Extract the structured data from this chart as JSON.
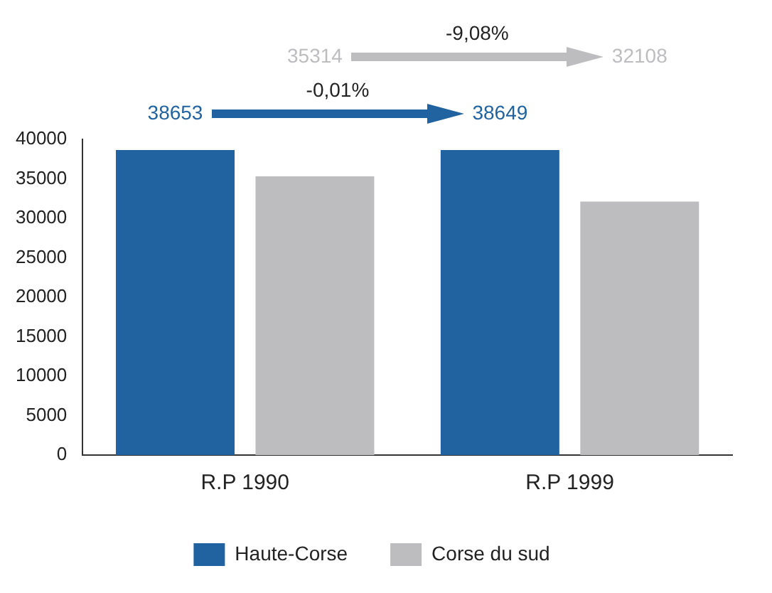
{
  "chart_data": {
    "type": "bar",
    "categories": [
      "R.P 1990",
      "R.P 1999"
    ],
    "series": [
      {
        "name": "Haute-Corse",
        "color": "#2163a0",
        "values": [
          38653,
          38649
        ]
      },
      {
        "name": "Corse du sud",
        "color": "#bdbdc0",
        "values": [
          35314,
          32108
        ]
      }
    ],
    "annotations": [
      "-0,01%",
      "-9,08%"
    ],
    "data_labels": true,
    "ylim": [
      0,
      40000
    ],
    "yticks": [
      0,
      5000,
      10000,
      15000,
      20000,
      25000,
      30000,
      35000,
      40000
    ],
    "grid": false,
    "legend": "bottom"
  }
}
